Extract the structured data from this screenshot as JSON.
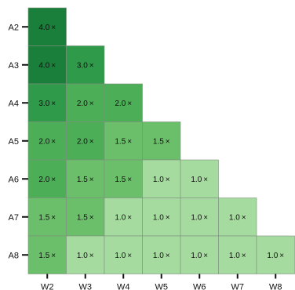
{
  "chart_data": {
    "type": "heatmap",
    "title": "",
    "xlabel": "",
    "ylabel": "",
    "x_categories": [
      "W2",
      "W3",
      "W4",
      "W5",
      "W6",
      "W7",
      "W8"
    ],
    "y_categories": [
      "A2",
      "A3",
      "A4",
      "A5",
      "A6",
      "A7",
      "A8"
    ],
    "value_suffix": "×",
    "grid": false,
    "colormap": {
      "4.0": "#1a7f3a",
      "3.0": "#2e9a4a",
      "2.0": "#4cae57",
      "1.5": "#6cbf6a",
      "1.0": "#a6dba0"
    },
    "values": [
      [
        4.0,
        null,
        null,
        null,
        null,
        null,
        null
      ],
      [
        4.0,
        3.0,
        null,
        null,
        null,
        null,
        null
      ],
      [
        3.0,
        2.0,
        2.0,
        null,
        null,
        null,
        null
      ],
      [
        2.0,
        2.0,
        1.5,
        1.5,
        null,
        null,
        null
      ],
      [
        2.0,
        1.5,
        1.5,
        1.0,
        1.0,
        null,
        null
      ],
      [
        1.5,
        1.5,
        1.0,
        1.0,
        1.0,
        1.0,
        null
      ],
      [
        1.5,
        1.0,
        1.0,
        1.0,
        1.0,
        1.0,
        1.0
      ]
    ]
  }
}
